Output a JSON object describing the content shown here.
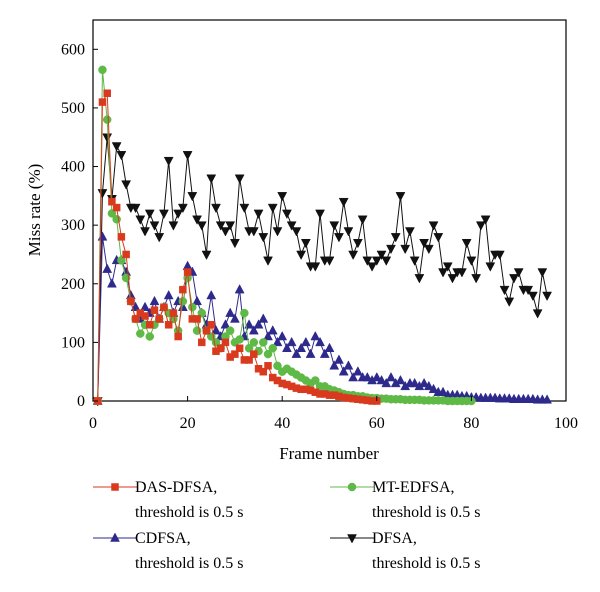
{
  "chart_data": {
    "type": "line",
    "xlabel": "Frame number",
    "ylabel": "Miss rate (%)",
    "xlim": [
      0,
      100
    ],
    "ylim": [
      0,
      650
    ],
    "xticks": [
      0,
      20,
      40,
      60,
      80,
      100
    ],
    "yticks": [
      0,
      100,
      200,
      300,
      400,
      500,
      600
    ],
    "grid": false,
    "legend_position": "bottom",
    "series": [
      {
        "name": "DAS-DFSA,",
        "name_line2": "threshold is 0.5 s",
        "color": "#d93a1e",
        "marker": "square",
        "x": [
          1,
          2,
          3,
          4,
          5,
          6,
          7,
          8,
          9,
          10,
          11,
          12,
          13,
          14,
          15,
          16,
          17,
          18,
          19,
          20,
          21,
          22,
          23,
          24,
          25,
          26,
          27,
          28,
          29,
          30,
          31,
          32,
          33,
          34,
          35,
          36,
          37,
          38,
          39,
          40,
          41,
          42,
          43,
          44,
          45,
          46,
          47,
          48,
          49,
          50,
          51,
          52,
          53,
          54,
          55,
          56,
          57,
          58,
          59,
          60
        ],
        "y": [
          0,
          510,
          525,
          340,
          330,
          280,
          250,
          170,
          140,
          150,
          145,
          130,
          155,
          140,
          160,
          130,
          150,
          110,
          190,
          220,
          140,
          140,
          100,
          120,
          130,
          85,
          90,
          100,
          75,
          80,
          90,
          70,
          70,
          80,
          55,
          50,
          60,
          40,
          35,
          30,
          28,
          25,
          22,
          20,
          20,
          18,
          15,
          12,
          12,
          10,
          10,
          8,
          6,
          5,
          4,
          3,
          2,
          1,
          0,
          0
        ]
      },
      {
        "name": "MT-EDFSA,",
        "name_line2": "threshold is 0.5 s",
        "color": "#5fb946",
        "marker": "circle",
        "x": [
          1,
          2,
          3,
          4,
          5,
          6,
          7,
          8,
          9,
          10,
          11,
          12,
          13,
          14,
          15,
          16,
          17,
          18,
          19,
          20,
          21,
          22,
          23,
          24,
          25,
          26,
          27,
          28,
          29,
          30,
          31,
          32,
          33,
          34,
          35,
          36,
          37,
          38,
          39,
          40,
          41,
          42,
          43,
          44,
          45,
          46,
          47,
          48,
          49,
          50,
          51,
          52,
          53,
          54,
          55,
          56,
          57,
          58,
          59,
          60,
          61,
          62,
          63,
          64,
          65,
          66,
          67,
          68,
          69,
          70,
          71,
          72,
          73,
          74,
          75,
          76,
          77,
          78,
          79,
          80
        ],
        "y": [
          0,
          565,
          480,
          320,
          310,
          240,
          210,
          170,
          140,
          115,
          130,
          110,
          130,
          140,
          160,
          150,
          140,
          120,
          170,
          210,
          160,
          120,
          150,
          120,
          110,
          100,
          90,
          110,
          120,
          100,
          105,
          150,
          90,
          100,
          85,
          100,
          80,
          90,
          60,
          50,
          55,
          50,
          45,
          40,
          35,
          30,
          35,
          25,
          25,
          20,
          18,
          15,
          12,
          10,
          10,
          8,
          8,
          6,
          5,
          5,
          4,
          4,
          3,
          3,
          3,
          2,
          2,
          2,
          2,
          1,
          1,
          1,
          1,
          1,
          0,
          0,
          0,
          0,
          0,
          0
        ]
      },
      {
        "name": "CDFSA,",
        "name_line2": "threshold is 0.5 s",
        "color": "#2e2a8c",
        "marker": "triangle-up",
        "x": [
          1,
          2,
          3,
          4,
          5,
          6,
          7,
          8,
          9,
          10,
          11,
          12,
          13,
          14,
          15,
          16,
          17,
          18,
          19,
          20,
          21,
          22,
          23,
          24,
          25,
          26,
          27,
          28,
          29,
          30,
          31,
          32,
          33,
          34,
          35,
          36,
          37,
          38,
          39,
          40,
          41,
          42,
          43,
          44,
          45,
          46,
          47,
          48,
          49,
          50,
          51,
          52,
          53,
          54,
          55,
          56,
          57,
          58,
          59,
          60,
          61,
          62,
          63,
          64,
          65,
          66,
          67,
          68,
          69,
          70,
          71,
          72,
          73,
          74,
          75,
          76,
          77,
          78,
          79,
          80,
          81,
          82,
          83,
          84,
          85,
          86,
          87,
          88,
          89,
          90,
          91,
          92,
          93,
          94,
          95,
          96
        ],
        "y": [
          0,
          280,
          225,
          200,
          240,
          240,
          220,
          180,
          160,
          140,
          160,
          150,
          170,
          140,
          160,
          180,
          150,
          170,
          160,
          230,
          220,
          170,
          150,
          130,
          180,
          120,
          110,
          130,
          150,
          140,
          190,
          110,
          130,
          120,
          130,
          140,
          110,
          120,
          100,
          110,
          90,
          100,
          80,
          90,
          100,
          80,
          110,
          100,
          80,
          90,
          60,
          70,
          50,
          60,
          40,
          50,
          40,
          40,
          35,
          40,
          35,
          30,
          40,
          30,
          35,
          25,
          30,
          30,
          25,
          30,
          25,
          20,
          15,
          15,
          10,
          10,
          10,
          8,
          8,
          6,
          6,
          5,
          5,
          5,
          5,
          4,
          4,
          4,
          3,
          3,
          3,
          3,
          3,
          2,
          2,
          2
        ]
      },
      {
        "name": "DFSA,",
        "name_line2": "threshold is 0.5 s",
        "color": "#111111",
        "marker": "triangle-down",
        "x": [
          1,
          2,
          3,
          4,
          5,
          6,
          7,
          8,
          9,
          10,
          11,
          12,
          13,
          14,
          15,
          16,
          17,
          18,
          19,
          20,
          21,
          22,
          23,
          24,
          25,
          26,
          27,
          28,
          29,
          30,
          31,
          32,
          33,
          34,
          35,
          36,
          37,
          38,
          39,
          40,
          41,
          42,
          43,
          44,
          45,
          46,
          47,
          48,
          49,
          50,
          51,
          52,
          53,
          54,
          55,
          56,
          57,
          58,
          59,
          60,
          61,
          62,
          63,
          64,
          65,
          66,
          67,
          68,
          69,
          70,
          71,
          72,
          73,
          74,
          75,
          76,
          77,
          78,
          79,
          80,
          81,
          82,
          83,
          84,
          85,
          86,
          87,
          88,
          89,
          90,
          91,
          92,
          93,
          94,
          95,
          96
        ],
        "y": [
          0,
          355,
          450,
          345,
          435,
          420,
          370,
          330,
          330,
          310,
          290,
          320,
          300,
          280,
          320,
          410,
          300,
          320,
          330,
          420,
          350,
          310,
          300,
          250,
          380,
          330,
          300,
          290,
          300,
          270,
          380,
          330,
          290,
          290,
          320,
          280,
          240,
          330,
          290,
          350,
          320,
          300,
          290,
          250,
          270,
          230,
          230,
          320,
          240,
          240,
          300,
          280,
          340,
          290,
          250,
          270,
          310,
          240,
          230,
          240,
          250,
          240,
          260,
          280,
          350,
          260,
          290,
          240,
          210,
          270,
          260,
          300,
          280,
          220,
          230,
          210,
          220,
          220,
          270,
          240,
          210,
          300,
          310,
          230,
          250,
          250,
          190,
          170,
          210,
          220,
          190,
          190,
          180,
          150,
          220,
          180
        ]
      }
    ]
  }
}
